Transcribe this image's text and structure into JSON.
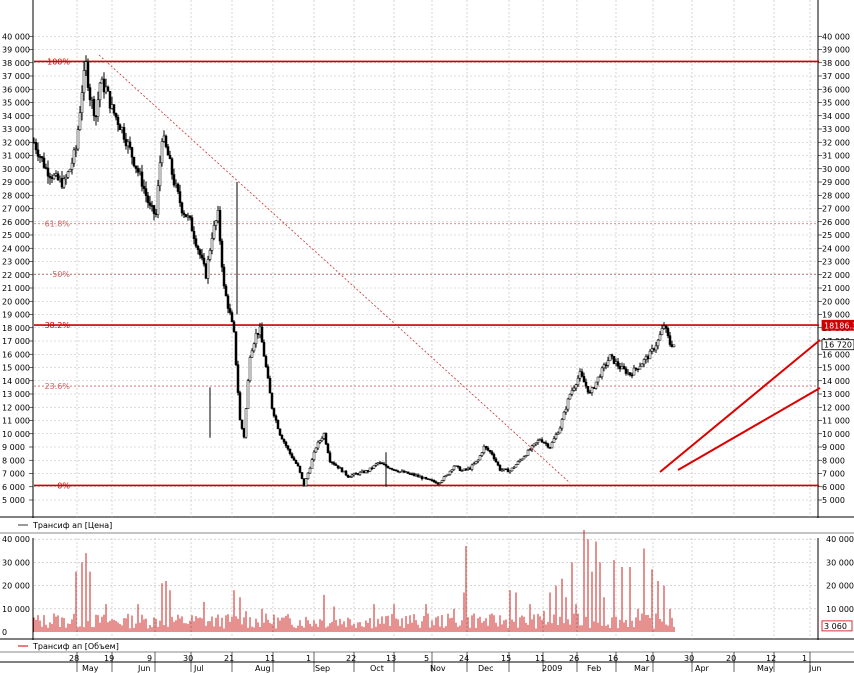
{
  "chart_data": [
    {
      "type": "candlestick",
      "series": [
        {
          "name": "Трансиф ап [Цена]"
        }
      ],
      "y_ticks": [
        5000,
        6000,
        7000,
        8000,
        9000,
        10000,
        11000,
        12000,
        13000,
        14000,
        15000,
        16000,
        17000,
        18000,
        19000,
        20000,
        21000,
        22000,
        23000,
        24000,
        25000,
        26000,
        27000,
        28000,
        29000,
        30000,
        31000,
        32000,
        33000,
        34000,
        35000,
        36000,
        37000,
        38000,
        39000,
        40000
      ],
      "y_tick_labels": [
        "5 000",
        "6 000",
        "7 000",
        "8 000",
        "9 000",
        "10 000",
        "11 000",
        "12 000",
        "13 000",
        "14 000",
        "15 000",
        "16 000",
        "17 000",
        "18 000",
        "19 000",
        "20 000",
        "21 000",
        "22 000",
        "23 000",
        "24 000",
        "25 000",
        "26 000",
        "27 000",
        "28 000",
        "29 000",
        "30 000",
        "31 000",
        "32 000",
        "33 000",
        "34 000",
        "35 000",
        "36 000",
        "37 000",
        "38 000",
        "39 000",
        "40 000"
      ],
      "fib_levels": [
        {
          "label": "100%",
          "value": 38100,
          "color": "#cc0000",
          "style": "solid"
        },
        {
          "label": "61.8%",
          "value": 25850,
          "color": "#cc6666",
          "style": "dotted"
        },
        {
          "label": "50%",
          "value": 22050,
          "color": "#cc6666",
          "style": "dotted"
        },
        {
          "label": "38.2%",
          "value": 18200,
          "color": "#cc0000",
          "style": "solid"
        },
        {
          "label": "23.6%",
          "value": 13600,
          "color": "#cc6666",
          "style": "dotted"
        },
        {
          "label": "0%",
          "value": 6100,
          "color": "#cc0000",
          "style": "solid"
        }
      ],
      "price_markers": [
        {
          "label": "18186.3",
          "value": 18186.3,
          "color": "#cc0000"
        },
        {
          "label": "16 720",
          "value": 16720,
          "color": "#000000"
        }
      ],
      "path": [
        [
          0,
          32000
        ],
        [
          12,
          30000
        ],
        [
          22,
          29200
        ],
        [
          30,
          28900
        ],
        [
          36,
          30000
        ],
        [
          42,
          31500
        ],
        [
          48,
          36000
        ],
        [
          52,
          37800
        ],
        [
          56,
          35500
        ],
        [
          62,
          34000
        ],
        [
          66,
          36500
        ],
        [
          72,
          36000
        ],
        [
          78,
          34500
        ],
        [
          88,
          33000
        ],
        [
          98,
          31000
        ],
        [
          108,
          29000
        ],
        [
          116,
          27000
        ],
        [
          122,
          26500
        ],
        [
          128,
          32500
        ],
        [
          134,
          31000
        ],
        [
          140,
          29000
        ],
        [
          148,
          27000
        ],
        [
          156,
          26000
        ],
        [
          164,
          24000
        ],
        [
          172,
          22000
        ],
        [
          178,
          25000
        ],
        [
          184,
          26500
        ],
        [
          190,
          21000
        ],
        [
          196,
          19000
        ],
        [
          200,
          17500
        ],
        [
          206,
          11000
        ],
        [
          210,
          9800
        ],
        [
          216,
          16000
        ],
        [
          222,
          17500
        ],
        [
          226,
          17800
        ],
        [
          232,
          15000
        ],
        [
          238,
          12000
        ],
        [
          246,
          10000
        ],
        [
          256,
          8500
        ],
        [
          264,
          7500
        ],
        [
          270,
          6100
        ],
        [
          276,
          7500
        ],
        [
          282,
          9000
        ],
        [
          290,
          10000
        ],
        [
          296,
          8000
        ],
        [
          304,
          7500
        ],
        [
          314,
          6800
        ],
        [
          324,
          7000
        ],
        [
          334,
          7200
        ],
        [
          344,
          7800
        ],
        [
          354,
          7500
        ],
        [
          364,
          7200
        ],
        [
          374,
          7000
        ],
        [
          384,
          6800
        ],
        [
          394,
          6500
        ],
        [
          404,
          6300
        ],
        [
          412,
          6800
        ],
        [
          420,
          7600
        ],
        [
          428,
          7200
        ],
        [
          436,
          7400
        ],
        [
          444,
          8000
        ],
        [
          450,
          9000
        ],
        [
          458,
          8500
        ],
        [
          466,
          7300
        ],
        [
          476,
          7200
        ],
        [
          486,
          8000
        ],
        [
          496,
          8800
        ],
        [
          506,
          9600
        ],
        [
          516,
          9000
        ],
        [
          526,
          10500
        ],
        [
          536,
          13000
        ],
        [
          546,
          14500
        ],
        [
          556,
          13000
        ],
        [
          566,
          14500
        ],
        [
          576,
          15800
        ],
        [
          586,
          15000
        ],
        [
          596,
          14500
        ],
        [
          606,
          15200
        ],
        [
          616,
          16000
        ],
        [
          624,
          17000
        ],
        [
          630,
          18200
        ],
        [
          636,
          16800
        ],
        [
          640,
          16720
        ]
      ]
    },
    {
      "type": "bar",
      "series": [
        {
          "name": "Трансиф ап [Объем]"
        }
      ],
      "y_ticks": [
        0,
        10000,
        20000,
        30000,
        40000
      ],
      "y_tick_labels": [
        "0",
        "10 000",
        "20 000",
        "30 000",
        "40 000"
      ],
      "last_value_label": "3 060",
      "spikes": [
        [
          20,
          8000
        ],
        [
          42,
          26000
        ],
        [
          48,
          30000
        ],
        [
          52,
          34000
        ],
        [
          56,
          26000
        ],
        [
          72,
          12000
        ],
        [
          90,
          6000
        ],
        [
          104,
          12000
        ],
        [
          128,
          21000
        ],
        [
          132,
          22000
        ],
        [
          136,
          18000
        ],
        [
          170,
          13000
        ],
        [
          200,
          18000
        ],
        [
          206,
          15000
        ],
        [
          212,
          9000
        ],
        [
          228,
          10000
        ],
        [
          290,
          16000
        ],
        [
          300,
          11000
        ],
        [
          340,
          12000
        ],
        [
          360,
          12000
        ],
        [
          392,
          12000
        ],
        [
          420,
          10000
        ],
        [
          430,
          17000
        ],
        [
          432,
          37000
        ],
        [
          440,
          8000
        ],
        [
          476,
          18000
        ],
        [
          482,
          17000
        ],
        [
          496,
          12000
        ],
        [
          510,
          9000
        ],
        [
          516,
          17000
        ],
        [
          522,
          20000
        ],
        [
          528,
          23000
        ],
        [
          532,
          15000
        ],
        [
          538,
          30000
        ],
        [
          542,
          12000
        ],
        [
          550,
          44000
        ],
        [
          554,
          40000
        ],
        [
          558,
          26000
        ],
        [
          562,
          39000
        ],
        [
          566,
          30000
        ],
        [
          570,
          15000
        ],
        [
          580,
          31000
        ],
        [
          588,
          28000
        ],
        [
          596,
          28000
        ],
        [
          604,
          10000
        ],
        [
          610,
          36000
        ],
        [
          618,
          27000
        ],
        [
          624,
          22000
        ],
        [
          630,
          20000
        ],
        [
          636,
          10000
        ]
      ]
    }
  ],
  "x_axis": {
    "ticks": [
      {
        "x": 77,
        "label": "28"
      },
      {
        "x": 112,
        "label": "19"
      },
      {
        "x": 155,
        "label": "9"
      },
      {
        "x": 191,
        "label": "30"
      },
      {
        "x": 232,
        "label": "21"
      },
      {
        "x": 273,
        "label": "11"
      },
      {
        "x": 314,
        "label": "1"
      },
      {
        "x": 354,
        "label": "22"
      },
      {
        "x": 394,
        "label": "13"
      },
      {
        "x": 432,
        "label": "5"
      },
      {
        "x": 467,
        "label": "24"
      },
      {
        "x": 509,
        "label": "15"
      },
      {
        "x": 543,
        "label": "11"
      },
      {
        "x": 577,
        "label": "26"
      },
      {
        "x": 616,
        "label": "16"
      },
      {
        "x": 653,
        "label": "10"
      },
      {
        "x": 692,
        "label": "30"
      },
      {
        "x": 734,
        "label": "20"
      },
      {
        "x": 774,
        "label": "12"
      },
      {
        "x": 810,
        "label": "1"
      }
    ],
    "months": [
      {
        "x": 80,
        "label": "May"
      },
      {
        "x": 136,
        "label": "Jun"
      },
      {
        "x": 192,
        "label": "Jul"
      },
      {
        "x": 253,
        "label": "Aug"
      },
      {
        "x": 313,
        "label": "Sep"
      },
      {
        "x": 368,
        "label": "Oct"
      },
      {
        "x": 428,
        "label": "Nov"
      },
      {
        "x": 476,
        "label": "Dec"
      },
      {
        "x": 540,
        "label": "2009"
      },
      {
        "x": 585,
        "label": "Feb"
      },
      {
        "x": 632,
        "label": "Mar"
      },
      {
        "x": 693,
        "label": "Apr"
      },
      {
        "x": 755,
        "label": "May"
      },
      {
        "x": 807,
        "label": "Jun"
      }
    ]
  }
}
